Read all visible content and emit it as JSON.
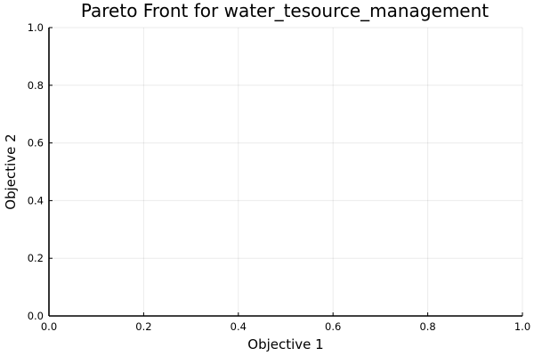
{
  "chart_data": {
    "type": "scatter",
    "title": "Pareto Front for water_tesource_management",
    "xlabel": "Objective 1",
    "ylabel": "Objective 2",
    "xlim": [
      0,
      1
    ],
    "ylim": [
      0,
      1
    ],
    "xticks": [
      "0.0",
      "0.2",
      "0.4",
      "0.6",
      "0.8",
      "1.0"
    ],
    "yticks": [
      "0.0",
      "0.2",
      "0.4",
      "0.6",
      "0.8",
      "1.0"
    ],
    "grid": true,
    "legend": "none",
    "series": [
      {
        "points": []
      }
    ]
  }
}
